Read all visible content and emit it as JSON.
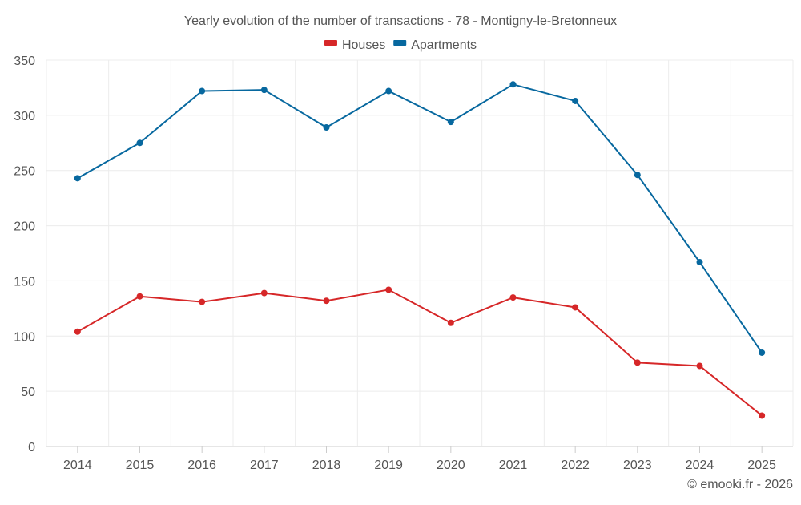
{
  "chart_data": {
    "type": "line",
    "title": "Yearly evolution of the number of transactions - 78 - Montigny-le-Bretonneux",
    "categories": [
      "2014",
      "2015",
      "2016",
      "2017",
      "2018",
      "2019",
      "2020",
      "2021",
      "2022",
      "2023",
      "2024",
      "2025"
    ],
    "series": [
      {
        "name": "Houses",
        "color": "#d62728",
        "values": [
          104,
          136,
          131,
          139,
          132,
          142,
          112,
          135,
          126,
          76,
          73,
          28
        ]
      },
      {
        "name": "Apartments",
        "color": "#07689f",
        "values": [
          243,
          275,
          322,
          323,
          289,
          322,
          294,
          328,
          313,
          246,
          167,
          85
        ]
      }
    ],
    "ylim": [
      0,
      350
    ],
    "yticks": [
      "0",
      "50",
      "100",
      "150",
      "200",
      "250",
      "300",
      "350"
    ],
    "xlabel": "",
    "ylabel": "",
    "grid": true,
    "legend_position": "top-center",
    "credit": "© emooki.fr - 2026"
  }
}
